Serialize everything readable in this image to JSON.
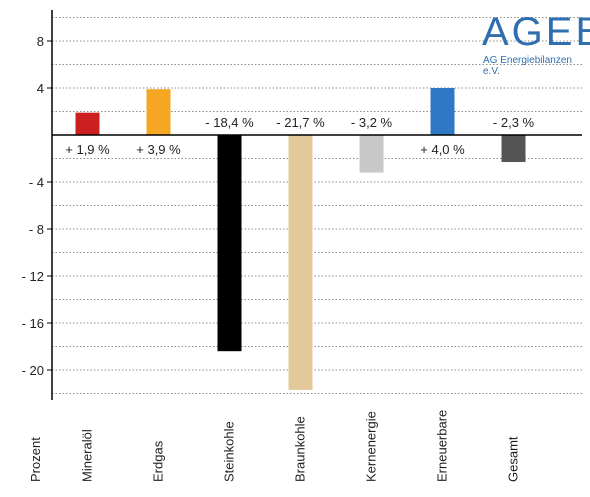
{
  "logo": {
    "text": "AGEB",
    "subtitle": "AG Energiebilanzen e.V."
  },
  "chart_data": {
    "type": "bar",
    "categories": [
      "Mineralöl",
      "Erdgas",
      "Steinkohle",
      "Braunkohle",
      "Kernenergie",
      "Erneuerbare",
      "Gesamt"
    ],
    "values": [
      1.9,
      3.9,
      -18.4,
      -21.7,
      -3.2,
      4.0,
      -2.3
    ],
    "data_labels": [
      "+ 1,9 %",
      "+ 3,9 %",
      "- 18,4 %",
      "- 21,7 %",
      "- 3,2 %",
      "+ 4,0 %",
      "- 2,3 %"
    ],
    "colors": [
      "#cc1f1f",
      "#f5a623",
      "#000000",
      "#e3c99a",
      "#c8c8c8",
      "#2f78c4",
      "#555555"
    ],
    "ylabel": "Prozent",
    "yticks": [
      8,
      4,
      0,
      -4,
      -8,
      -12,
      -16,
      -20
    ],
    "ytick_labels": [
      "8",
      "4",
      "",
      "- 4",
      "- 8",
      "- 12",
      "- 16",
      "- 20"
    ],
    "ylim": [
      -22,
      11
    ],
    "grid": true
  }
}
